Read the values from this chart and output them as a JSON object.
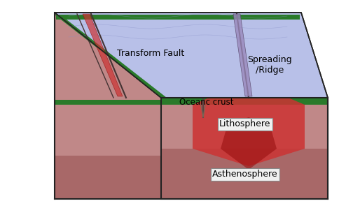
{
  "labels": {
    "transform_fault": "Transform Fault",
    "spreading_ridge": "Spreading\n/Ridge",
    "oceanic_crust": "Oceanc crust",
    "lithosphere": "Lithosphere",
    "asthenosphere": "Asthenosphere"
  },
  "colors": {
    "bg": "#ffffff",
    "ocean_top": "#b8c0e8",
    "ocean_side": "#9098c0",
    "rock_pink": "#c08888",
    "rock_darker": "#a86868",
    "rock_deep": "#b07070",
    "green_crust": "#2a7a2a",
    "outline": "#222222",
    "label_box": "#f0f0f0",
    "magma": "#cc3333",
    "magma_dark": "#991111",
    "ridge_purple": "#9988bb"
  }
}
